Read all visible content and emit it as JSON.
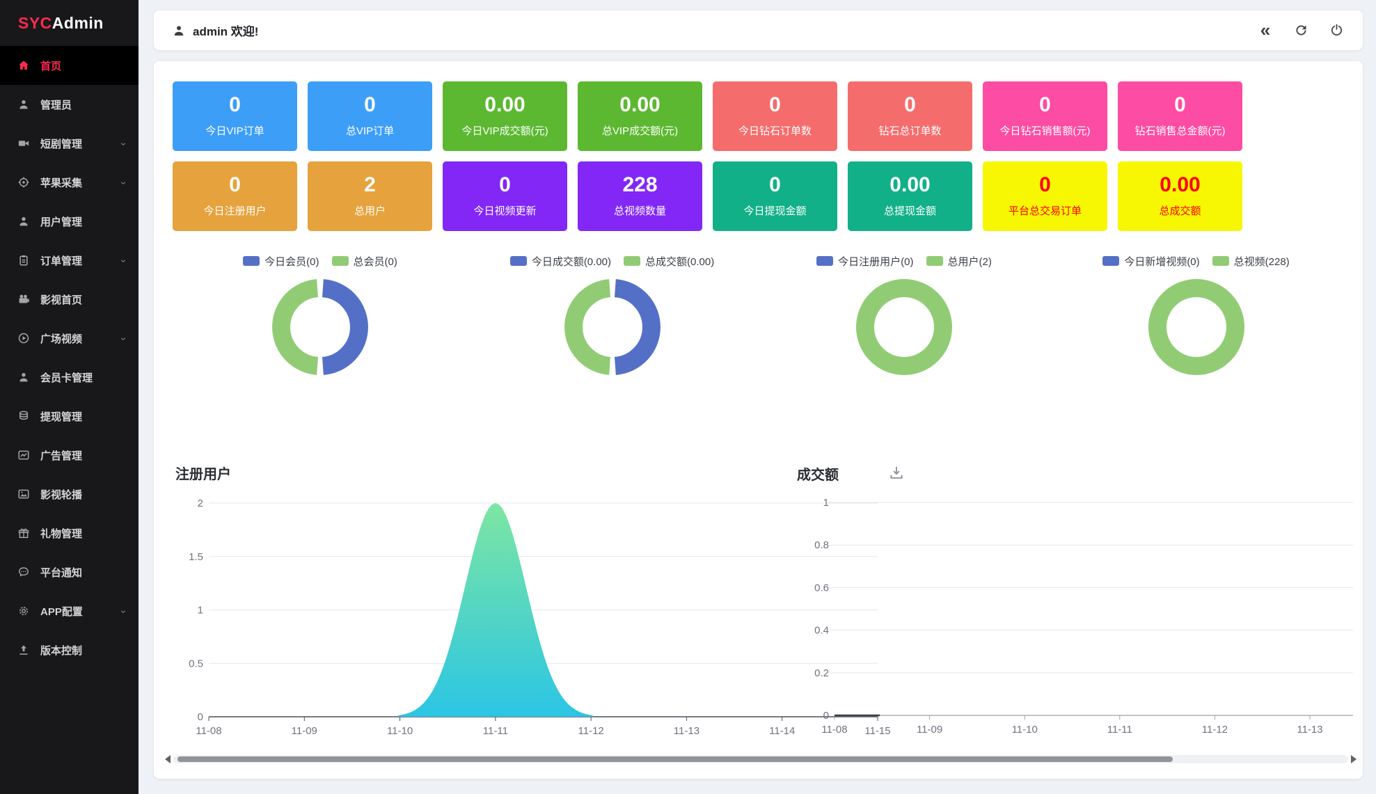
{
  "app": {
    "logo_accent": "SYC",
    "logo_rest": "Admin"
  },
  "topbar": {
    "welcome": "admin 欢迎!",
    "user_icon": "user-icon",
    "icons": [
      {
        "name": "collapse-icon",
        "glyph": "«"
      },
      {
        "name": "refresh-icon"
      },
      {
        "name": "power-icon"
      }
    ]
  },
  "sidebar": {
    "items": [
      {
        "name": "home",
        "label": "首页",
        "icon": "home-icon",
        "active": true,
        "chevron": false
      },
      {
        "name": "admin",
        "label": "管理员",
        "icon": "admin-icon",
        "active": false,
        "chevron": false
      },
      {
        "name": "drama-manage",
        "label": "短剧管理",
        "icon": "video-icon",
        "active": false,
        "chevron": true
      },
      {
        "name": "apple-collect",
        "label": "苹果采集",
        "icon": "aim-icon",
        "active": false,
        "chevron": true
      },
      {
        "name": "user-manage",
        "label": "用户管理",
        "icon": "user-icon",
        "active": false,
        "chevron": false
      },
      {
        "name": "order-manage",
        "label": "订单管理",
        "icon": "order-icon",
        "active": false,
        "chevron": true
      },
      {
        "name": "film-home",
        "label": "影视首页",
        "icon": "film-icon",
        "active": false,
        "chevron": false
      },
      {
        "name": "plaza-video",
        "label": "广场视频",
        "icon": "play-icon",
        "active": false,
        "chevron": true
      },
      {
        "name": "member-card",
        "label": "会员卡管理",
        "icon": "member-icon",
        "active": false,
        "chevron": false
      },
      {
        "name": "withdraw-manage",
        "label": "提现管理",
        "icon": "withdraw-icon",
        "active": false,
        "chevron": false
      },
      {
        "name": "ad-manage",
        "label": "广告管理",
        "icon": "ad-icon",
        "active": false,
        "chevron": false
      },
      {
        "name": "film-carousel",
        "label": "影视轮播",
        "icon": "carousel-icon",
        "active": false,
        "chevron": false
      },
      {
        "name": "gift-manage",
        "label": "礼物管理",
        "icon": "gift-icon",
        "active": false,
        "chevron": false
      },
      {
        "name": "platform-notice",
        "label": "平台通知",
        "icon": "notice-icon",
        "active": false,
        "chevron": false
      },
      {
        "name": "app-config",
        "label": "APP配置",
        "icon": "gear-icon",
        "active": false,
        "chevron": true
      },
      {
        "name": "version-control",
        "label": "版本控制",
        "icon": "upload-icon",
        "active": false,
        "chevron": false
      }
    ]
  },
  "stats": {
    "row1": [
      {
        "value": "0",
        "label": "今日VIP订单",
        "bg": "#3D9EF7",
        "fg": "#FFFFFF"
      },
      {
        "value": "0",
        "label": "总VIP订单",
        "bg": "#3D9EF7",
        "fg": "#FFFFFF"
      },
      {
        "value": "0.00",
        "label": "今日VIP成交额(元)",
        "bg": "#5CB831",
        "fg": "#FFFFFF"
      },
      {
        "value": "0.00",
        "label": "总VIP成交额(元)",
        "bg": "#5CB831",
        "fg": "#FFFFFF"
      },
      {
        "value": "0",
        "label": "今日钻石订单数",
        "bg": "#F56C6C",
        "fg": "#FFFFFF"
      },
      {
        "value": "0",
        "label": "钻石总订单数",
        "bg": "#F56C6C",
        "fg": "#FFFFFF"
      },
      {
        "value": "0",
        "label": "今日钻石销售额(元)",
        "bg": "#FC4CA3",
        "fg": "#FFFFFF"
      },
      {
        "value": "0",
        "label": "钻石销售总金额(元)",
        "bg": "#FC4CA3",
        "fg": "#FFFFFF"
      }
    ],
    "row2": [
      {
        "value": "0",
        "label": "今日注册用户",
        "bg": "#E6A23C",
        "fg": "#FFFFFF"
      },
      {
        "value": "2",
        "label": "总用户",
        "bg": "#E6A23C",
        "fg": "#FFFFFF"
      },
      {
        "value": "0",
        "label": "今日视频更新",
        "bg": "#8227F5",
        "fg": "#FFFFFF"
      },
      {
        "value": "228",
        "label": "总视频数量",
        "bg": "#8227F5",
        "fg": "#FFFFFF"
      },
      {
        "value": "0",
        "label": "今日提现金额",
        "bg": "#12B088",
        "fg": "#FFFFFF"
      },
      {
        "value": "0.00",
        "label": "总提现金额",
        "bg": "#12B088",
        "fg": "#FFFFFF"
      },
      {
        "value": "0",
        "label": "平台总交易订单",
        "bg": "#F7F704",
        "fg": "#FF0000"
      },
      {
        "value": "0.00",
        "label": "总成交额",
        "bg": "#F7F704",
        "fg": "#FF0000"
      }
    ]
  },
  "donut_colors": {
    "today": "#5470C6",
    "total": "#91CC75"
  },
  "donuts": [
    {
      "legend": [
        {
          "label": "今日会员(0)",
          "color": "#5470C6"
        },
        {
          "label": "总会员(0)",
          "color": "#91CC75"
        }
      ],
      "slices": [
        {
          "color": "#5470C6",
          "fraction": 0.5
        },
        {
          "color": "#91CC75",
          "fraction": 0.5
        }
      ]
    },
    {
      "legend": [
        {
          "label": "今日成交额(0.00)",
          "color": "#5470C6"
        },
        {
          "label": "总成交额(0.00)",
          "color": "#91CC75"
        }
      ],
      "slices": [
        {
          "color": "#5470C6",
          "fraction": 0.5
        },
        {
          "color": "#91CC75",
          "fraction": 0.5
        }
      ]
    },
    {
      "legend": [
        {
          "label": "今日注册用户(0)",
          "color": "#5470C6"
        },
        {
          "label": "总用户(2)",
          "color": "#91CC75"
        }
      ],
      "slices": [
        {
          "color": "#91CC75",
          "fraction": 1
        }
      ]
    },
    {
      "legend": [
        {
          "label": "今日新增视频(0)",
          "color": "#5470C6"
        },
        {
          "label": "总视频(228)",
          "color": "#91CC75"
        }
      ],
      "slices": [
        {
          "color": "#91CC75",
          "fraction": 1
        }
      ]
    }
  ],
  "chart_data": [
    {
      "type": "area",
      "title": "注册用户",
      "x": [
        "11-08",
        "11-09",
        "11-10",
        "11-11",
        "11-12",
        "11-13",
        "11-14",
        "11-15"
      ],
      "values": [
        0,
        0,
        0,
        2,
        0,
        0,
        0,
        0
      ],
      "ylim": [
        0,
        2
      ],
      "yticks": [
        "0",
        "0.5",
        "1",
        "1.5",
        "2"
      ],
      "grid": true,
      "gradient": [
        "#7DE6A2",
        "#2BC5E4"
      ]
    },
    {
      "type": "line",
      "title": "成交额",
      "toolbox_icon": "download-icon",
      "x": [
        "11-08",
        "11-09",
        "11-10",
        "11-11",
        "11-12",
        "11-13"
      ],
      "values": [
        0,
        0,
        0,
        0,
        0,
        0
      ],
      "ylim": [
        0,
        1
      ],
      "yticks": [
        "0",
        "0.2",
        "0.4",
        "0.6",
        "0.8",
        "1"
      ],
      "grid": true
    }
  ]
}
